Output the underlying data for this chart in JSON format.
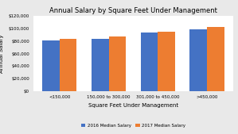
{
  "title": "Annual Salary by Square Feet Under Management",
  "xlabel": "Square Feet Under Management",
  "ylabel": "Annual Salary",
  "categories": [
    "<150,000",
    "150,000 to 300,000",
    "301,000 to 450,000",
    ">450,000"
  ],
  "series_2016": [
    81000,
    84000,
    94000,
    99000
  ],
  "series_2017": [
    84000,
    87000,
    95000,
    103000
  ],
  "color_2016": "#4472C4",
  "color_2017": "#ED7D31",
  "legend_2016": "2016 Median Salary",
  "legend_2017": "2017 Median Salary",
  "ylim": [
    0,
    120000
  ],
  "yticks": [
    0,
    20000,
    40000,
    60000,
    80000,
    100000,
    120000
  ],
  "background_color": "#E9E9E9",
  "plot_background_color": "#FFFFFF",
  "grid_color": "#FFFFFF",
  "bar_width": 0.35
}
